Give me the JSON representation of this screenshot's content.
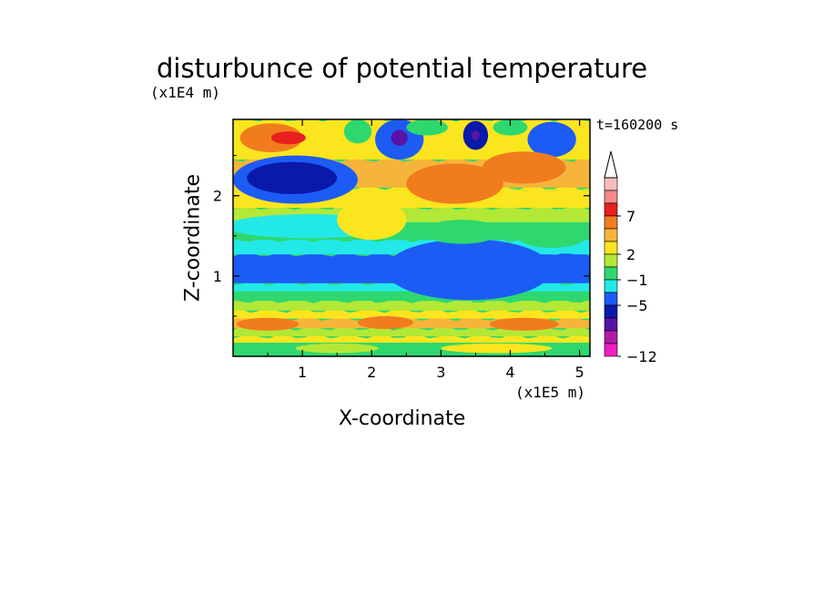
{
  "chart_data": {
    "type": "heatmap",
    "title": "disturbunce of potential temperature",
    "xlabel": "X-coordinate",
    "ylabel": "Z-coordinate",
    "x_multiplier": "(x1E5 m)",
    "y_multiplier": "(x1E4 m)",
    "time_label": "t=160200 s",
    "xlim": [
      0,
      5.15
    ],
    "ylim": [
      0,
      2.95
    ],
    "x_ticks": [
      "1",
      "2",
      "3",
      "4",
      "5"
    ],
    "y_ticks": [
      "1",
      "2"
    ],
    "colorbar": {
      "tick_labels": [
        "7",
        "2",
        "−1",
        "−5",
        "−12"
      ],
      "levels_top_to_bottom": [
        "#f7bcbc",
        "#f28a8a",
        "#e8201e",
        "#f07c1e",
        "#f6b53a",
        "#fbe51e",
        "#b3e836",
        "#2ed86e",
        "#22e8e8",
        "#1c5cf5",
        "#0a19a8",
        "#5a13a6",
        "#b21ca5",
        "#f01ec3"
      ],
      "extend_top": true
    },
    "bands": [
      {
        "z": 0.05,
        "h": 0.12,
        "color": "#2ed86e"
      },
      {
        "z": 0.17,
        "h": 0.08,
        "color": "#fbe51e"
      },
      {
        "z": 0.25,
        "h": 0.1,
        "color": "#b3e836"
      },
      {
        "z": 0.35,
        "h": 0.12,
        "color": "#f6b53a"
      },
      {
        "z": 0.47,
        "h": 0.1,
        "color": "#fbe51e"
      },
      {
        "z": 0.57,
        "h": 0.12,
        "color": "#b3e836"
      },
      {
        "z": 0.69,
        "h": 0.12,
        "color": "#2ed86e"
      },
      {
        "z": 0.81,
        "h": 0.1,
        "color": "#22e8e8"
      },
      {
        "z": 0.91,
        "h": 0.36,
        "color": "#1c5cf5"
      },
      {
        "z": 1.27,
        "h": 0.18,
        "color": "#22e8e8"
      },
      {
        "z": 1.45,
        "h": 0.22,
        "color": "#2ed86e"
      },
      {
        "z": 1.67,
        "h": 0.18,
        "color": "#b3e836"
      },
      {
        "z": 1.85,
        "h": 0.25,
        "color": "#fbe51e"
      },
      {
        "z": 2.1,
        "h": 0.35,
        "color": "#f6b53a"
      },
      {
        "z": 2.45,
        "h": 0.5,
        "color": "#fbe51e"
      }
    ],
    "patches": [
      {
        "x": 0.55,
        "z": 2.72,
        "rx": 0.45,
        "rz": 0.18,
        "color": "#f07c1e"
      },
      {
        "x": 0.8,
        "z": 2.72,
        "rx": 0.25,
        "rz": 0.08,
        "color": "#e8201e"
      },
      {
        "x": 0.9,
        "z": 2.2,
        "rx": 0.9,
        "rz": 0.3,
        "color": "#1c5cf5"
      },
      {
        "x": 0.85,
        "z": 2.22,
        "rx": 0.65,
        "rz": 0.2,
        "color": "#0a19a8"
      },
      {
        "x": 1.1,
        "z": 1.62,
        "rx": 1.2,
        "rz": 0.15,
        "color": "#22e8e8"
      },
      {
        "x": 2.4,
        "z": 2.7,
        "rx": 0.35,
        "rz": 0.25,
        "color": "#1c5cf5"
      },
      {
        "x": 2.4,
        "z": 2.72,
        "rx": 0.12,
        "rz": 0.1,
        "color": "#5a13a6"
      },
      {
        "x": 3.5,
        "z": 2.75,
        "rx": 0.18,
        "rz": 0.18,
        "color": "#0a19a8"
      },
      {
        "x": 3.5,
        "z": 2.75,
        "rx": 0.06,
        "rz": 0.06,
        "color": "#5a13a6"
      },
      {
        "x": 4.6,
        "z": 2.7,
        "rx": 0.35,
        "rz": 0.22,
        "color": "#1c5cf5"
      },
      {
        "x": 3.4,
        "z": 1.1,
        "rx": 0.85,
        "rz": 0.28,
        "color": "#0a19a8"
      },
      {
        "x": 3.4,
        "z": 1.08,
        "rx": 1.2,
        "rz": 0.38,
        "color": "#1c5cf5"
      },
      {
        "x": 4.8,
        "z": 1.1,
        "rx": 0.35,
        "rz": 0.18,
        "color": "#1c5cf5"
      },
      {
        "x": 3.2,
        "z": 2.15,
        "rx": 0.7,
        "rz": 0.25,
        "color": "#f07c1e"
      },
      {
        "x": 4.2,
        "z": 2.35,
        "rx": 0.6,
        "rz": 0.2,
        "color": "#f07c1e"
      },
      {
        "x": 2.0,
        "z": 1.7,
        "rx": 0.5,
        "rz": 0.25,
        "color": "#fbe51e"
      },
      {
        "x": 3.3,
        "z": 1.55,
        "rx": 0.55,
        "rz": 0.15,
        "color": "#2ed86e"
      },
      {
        "x": 4.6,
        "z": 1.5,
        "rx": 0.5,
        "rz": 0.15,
        "color": "#2ed86e"
      },
      {
        "x": 1.8,
        "z": 2.8,
        "rx": 0.2,
        "rz": 0.15,
        "color": "#2ed86e"
      },
      {
        "x": 2.8,
        "z": 2.85,
        "rx": 0.3,
        "rz": 0.1,
        "color": "#2ed86e"
      },
      {
        "x": 4.0,
        "z": 2.85,
        "rx": 0.25,
        "rz": 0.1,
        "color": "#2ed86e"
      },
      {
        "x": 0.5,
        "z": 0.4,
        "rx": 0.45,
        "rz": 0.08,
        "color": "#f07c1e"
      },
      {
        "x": 2.2,
        "z": 0.42,
        "rx": 0.4,
        "rz": 0.08,
        "color": "#f07c1e"
      },
      {
        "x": 4.2,
        "z": 0.4,
        "rx": 0.5,
        "rz": 0.08,
        "color": "#f07c1e"
      },
      {
        "x": 1.5,
        "z": 0.1,
        "rx": 0.6,
        "rz": 0.06,
        "color": "#b3e836"
      },
      {
        "x": 3.8,
        "z": 0.1,
        "rx": 0.8,
        "rz": 0.06,
        "color": "#fbe51e"
      }
    ]
  }
}
